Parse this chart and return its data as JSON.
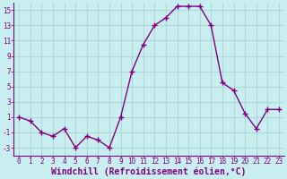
{
  "x": [
    0,
    1,
    2,
    3,
    4,
    5,
    6,
    7,
    8,
    9,
    10,
    11,
    12,
    13,
    14,
    15,
    16,
    17,
    18,
    19,
    20,
    21,
    22,
    23
  ],
  "y": [
    1,
    0.5,
    -1,
    -1.5,
    -0.5,
    -3,
    -1.5,
    -2,
    -3,
    1,
    7,
    10.5,
    13,
    14,
    15.5,
    15.5,
    15.5,
    13,
    5.5,
    4.5,
    1.5,
    -0.5,
    2,
    2
  ],
  "line_color": "#800080",
  "marker": "+",
  "marker_size": 4,
  "bg_color": "#c8eef0",
  "grid_color": "#b0d8da",
  "xlabel": "Windchill (Refroidissement éolien,°C)",
  "ylim": [
    -4,
    16
  ],
  "xlim": [
    -0.5,
    23.5
  ],
  "yticks": [
    -3,
    -1,
    1,
    3,
    5,
    7,
    9,
    11,
    13,
    15
  ],
  "xticks": [
    0,
    1,
    2,
    3,
    4,
    5,
    6,
    7,
    8,
    9,
    10,
    11,
    12,
    13,
    14,
    15,
    16,
    17,
    18,
    19,
    20,
    21,
    22,
    23
  ],
  "tick_fontsize": 5.5,
  "xlabel_fontsize": 7.0,
  "spine_color": "#800080",
  "linewidth": 1.0,
  "marker_linewidth": 1.0
}
